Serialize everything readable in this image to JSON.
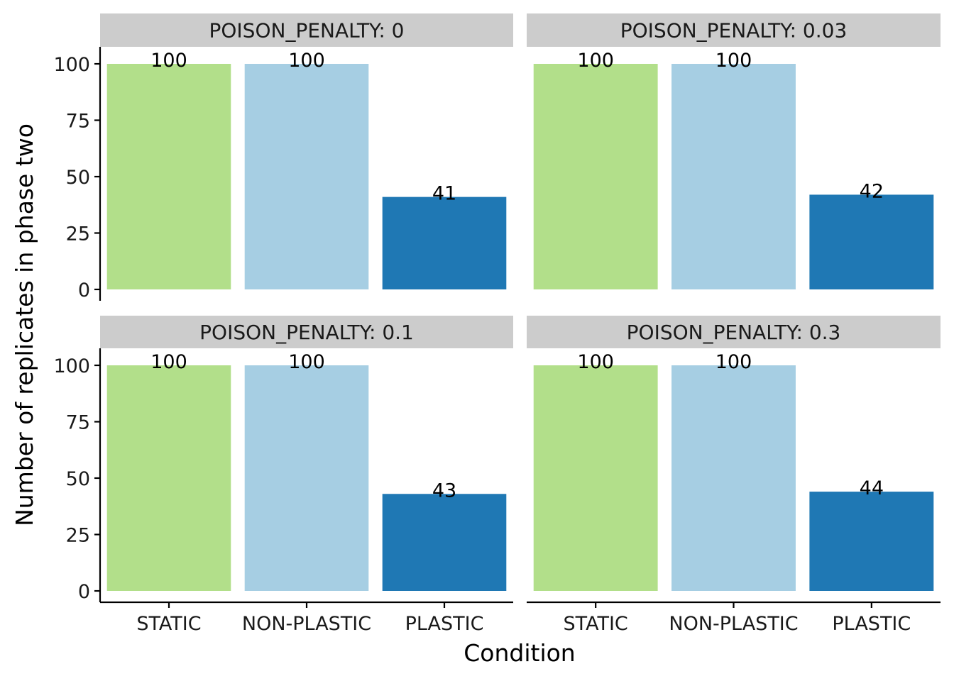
{
  "chart_data": {
    "type": "bar",
    "facet_prefix": "POISON_PENALTY: ",
    "xlabel": "Condition",
    "ylabel": "Number of replicates in phase two",
    "categories": [
      "STATIC",
      "NON-PLASTIC",
      "PLASTIC"
    ],
    "colors": {
      "STATIC": "#b2df8a",
      "NON-PLASTIC": "#a6cee3",
      "PLASTIC": "#1f78b4"
    },
    "ylim": [
      0,
      100
    ],
    "yticks": [
      0,
      25,
      50,
      75,
      100
    ],
    "facets": [
      {
        "label": "POISON_PENALTY: 0",
        "values": [
          100,
          100,
          41
        ]
      },
      {
        "label": "POISON_PENALTY: 0.03",
        "values": [
          100,
          100,
          42
        ]
      },
      {
        "label": "POISON_PENALTY: 0.1",
        "values": [
          100,
          100,
          43
        ]
      },
      {
        "label": "POISON_PENALTY: 0.3",
        "values": [
          100,
          100,
          44
        ]
      }
    ]
  }
}
